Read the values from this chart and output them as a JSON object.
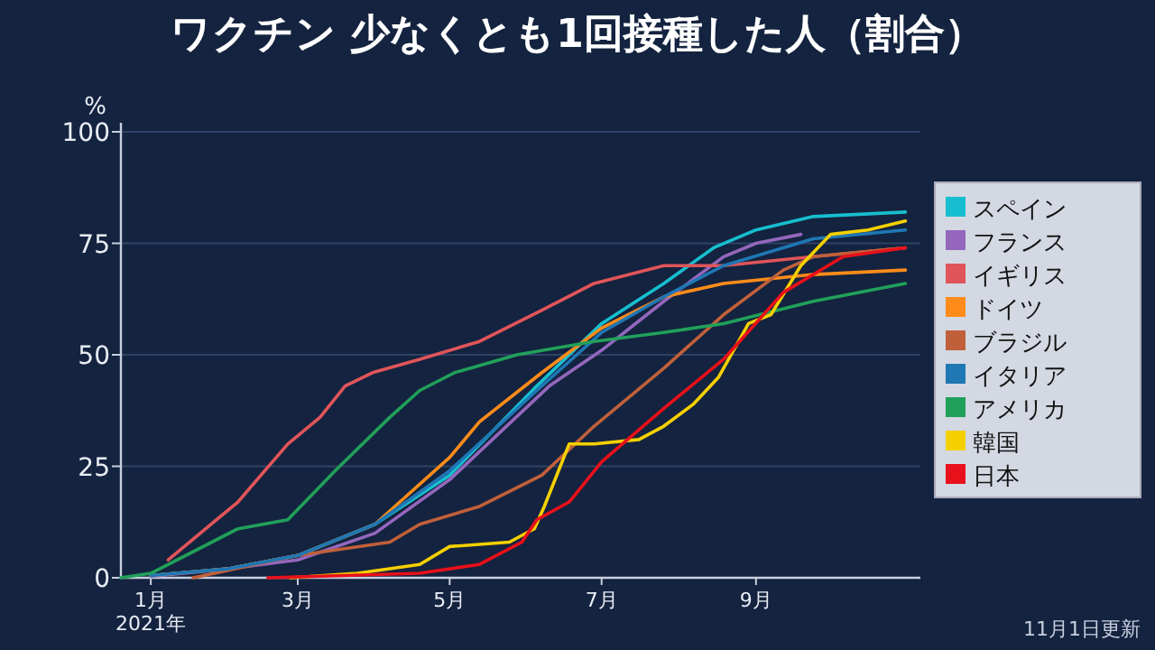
{
  "chart_data": {
    "type": "line",
    "title": "ワクチン 少なくとも1回接種した人（割合）",
    "ylabel": "%",
    "annotations": [
      "11月1日更新"
    ],
    "xlim": [
      "2020-12-20",
      "2021-11-06"
    ],
    "xticks": [
      {
        "value": "2021-01-01",
        "label": "1月\n2021年"
      },
      {
        "value": "2021-03-01",
        "label": "3月"
      },
      {
        "value": "2021-05-01",
        "label": "5月"
      },
      {
        "value": "2021-07-01",
        "label": "7月"
      },
      {
        "value": "2021-09-01",
        "label": "9月"
      }
    ],
    "ylim": [
      0,
      100
    ],
    "yticks": [
      0,
      25,
      50,
      75,
      100
    ],
    "grid": "y",
    "legend": "right",
    "marker": "none",
    "line_style": "solid",
    "series": [
      {
        "name": "スペイン",
        "color": "#17becf",
        "x": [
          "2021-01-01",
          "2021-02-01",
          "2021-03-01",
          "2021-04-01",
          "2021-05-01",
          "2021-06-05",
          "2021-07-01",
          "2021-07-26",
          "2021-08-15",
          "2021-09-01",
          "2021-09-24",
          "2021-10-31"
        ],
        "values": [
          0.5,
          2,
          5,
          12,
          23,
          43,
          57,
          66,
          74,
          78,
          81,
          82
        ]
      },
      {
        "name": "フランス",
        "color": "#9467bd",
        "x": [
          "2021-01-01",
          "2021-02-01",
          "2021-03-01",
          "2021-04-01",
          "2021-05-01",
          "2021-06-10",
          "2021-07-01",
          "2021-07-26",
          "2021-08-19",
          "2021-09-01",
          "2021-09-19"
        ],
        "values": [
          0.3,
          2,
          4,
          10,
          22,
          43,
          51,
          62,
          72,
          75,
          77
        ]
      },
      {
        "name": "イギリス",
        "color": "#e0555a",
        "x": [
          "2021-01-08",
          "2021-02-05",
          "2021-02-25",
          "2021-03-10",
          "2021-03-20",
          "2021-03-31",
          "2021-04-19",
          "2021-05-13",
          "2021-06-07",
          "2021-06-28",
          "2021-07-26",
          "2021-08-19",
          "2021-09-24",
          "2021-10-31"
        ],
        "values": [
          4,
          17,
          30,
          36,
          43,
          46,
          49,
          53,
          60,
          66,
          70,
          70,
          72,
          74
        ]
      },
      {
        "name": "ドイツ",
        "color": "#ff8c1a",
        "x": [
          "2021-01-01",
          "2021-02-01",
          "2021-03-01",
          "2021-04-01",
          "2021-05-01",
          "2021-05-13",
          "2021-06-07",
          "2021-07-01",
          "2021-07-26",
          "2021-08-19",
          "2021-09-24",
          "2021-10-31"
        ],
        "values": [
          0.5,
          2,
          5,
          12,
          27,
          35,
          46,
          56,
          63,
          66,
          68,
          69
        ]
      },
      {
        "name": "ブラジル",
        "color": "#c0603a",
        "x": [
          "2021-01-18",
          "2021-03-01",
          "2021-04-07",
          "2021-04-19",
          "2021-05-13",
          "2021-06-07",
          "2021-06-28",
          "2021-07-26",
          "2021-08-19",
          "2021-09-12",
          "2021-09-24",
          "2021-10-31"
        ],
        "values": [
          0,
          5,
          8,
          12,
          16,
          23,
          34,
          47,
          59,
          69,
          72,
          74
        ]
      },
      {
        "name": "イタリア",
        "color": "#1f77b4",
        "x": [
          "2021-01-01",
          "2021-02-01",
          "2021-03-01",
          "2021-04-01",
          "2021-05-01",
          "2021-06-05",
          "2021-07-01",
          "2021-07-26",
          "2021-08-19",
          "2021-09-24",
          "2021-10-31"
        ],
        "values": [
          0.5,
          2,
          5,
          12,
          24,
          42,
          55,
          63,
          70,
          76,
          78
        ]
      },
      {
        "name": "アメリカ",
        "color": "#21a05a",
        "x": [
          "2020-12-20",
          "2021-01-01",
          "2021-02-05",
          "2021-02-25",
          "2021-03-16",
          "2021-04-07",
          "2021-04-19",
          "2021-05-03",
          "2021-05-28",
          "2021-06-28",
          "2021-07-26",
          "2021-08-19",
          "2021-09-24",
          "2021-10-31"
        ],
        "values": [
          0,
          1,
          11,
          13,
          24,
          36,
          42,
          46,
          50,
          53,
          55,
          57,
          62,
          66
        ]
      },
      {
        "name": "韓国",
        "color": "#f5d000",
        "x": [
          "2021-02-26",
          "2021-03-25",
          "2021-04-19",
          "2021-05-01",
          "2021-05-25",
          "2021-06-04",
          "2021-06-08",
          "2021-06-18",
          "2021-06-28",
          "2021-07-16",
          "2021-07-26",
          "2021-08-07",
          "2021-08-17",
          "2021-08-29",
          "2021-09-07",
          "2021-09-19",
          "2021-10-01",
          "2021-10-16",
          "2021-10-31"
        ],
        "values": [
          0,
          1,
          3,
          7,
          8,
          11,
          16,
          30,
          30,
          31,
          34,
          39,
          45,
          57,
          59,
          70,
          77,
          78,
          80
        ]
      },
      {
        "name": "日本",
        "color": "#e8101a",
        "x": [
          "2021-02-17",
          "2021-04-19",
          "2021-05-13",
          "2021-05-30",
          "2021-06-05",
          "2021-06-18",
          "2021-07-01",
          "2021-07-26",
          "2021-08-19",
          "2021-09-12",
          "2021-10-06",
          "2021-10-31"
        ],
        "values": [
          0,
          1,
          3,
          8,
          13,
          17,
          26,
          38,
          49,
          64,
          72,
          74
        ]
      }
    ]
  }
}
